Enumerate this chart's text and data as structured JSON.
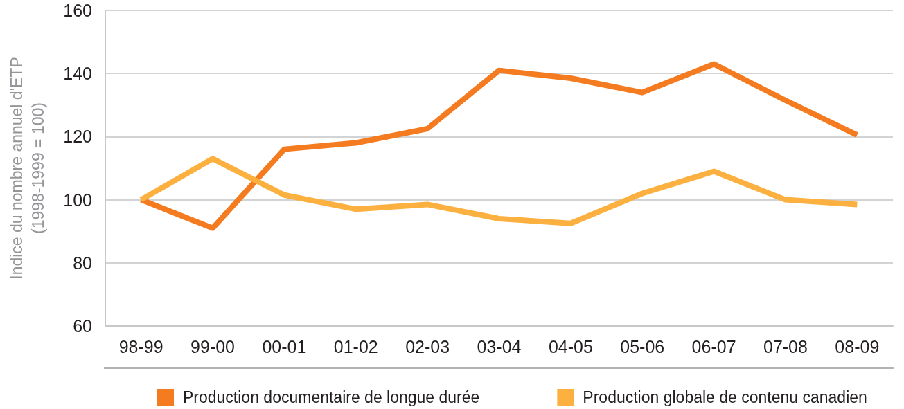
{
  "chart_data": {
    "type": "line",
    "ylabel": "Indice du nombre annuel d'ETP\n(1998-1999 = 100)",
    "categories": [
      "98-99",
      "99-00",
      "00-01",
      "01-02",
      "02-03",
      "03-04",
      "04-05",
      "05-06",
      "06-07",
      "07-08",
      "08-09"
    ],
    "series": [
      {
        "name": "Production documentaire de longue durée",
        "color": "#f47b20",
        "values": [
          100,
          91,
          116,
          118,
          122.5,
          141,
          138.5,
          134,
          143,
          131.5,
          120.5
        ]
      },
      {
        "name": "Production globale de contenu canadien",
        "color": "#fbb040",
        "values": [
          100,
          113,
          101.5,
          97,
          98.5,
          94,
          92.5,
          102,
          109,
          100,
          98.5
        ]
      }
    ],
    "ylim": [
      60,
      160
    ],
    "yticks": [
      60,
      80,
      100,
      120,
      140,
      160
    ],
    "grid": "y",
    "legend": "bottom",
    "marker": "none",
    "line_style": "solid"
  }
}
